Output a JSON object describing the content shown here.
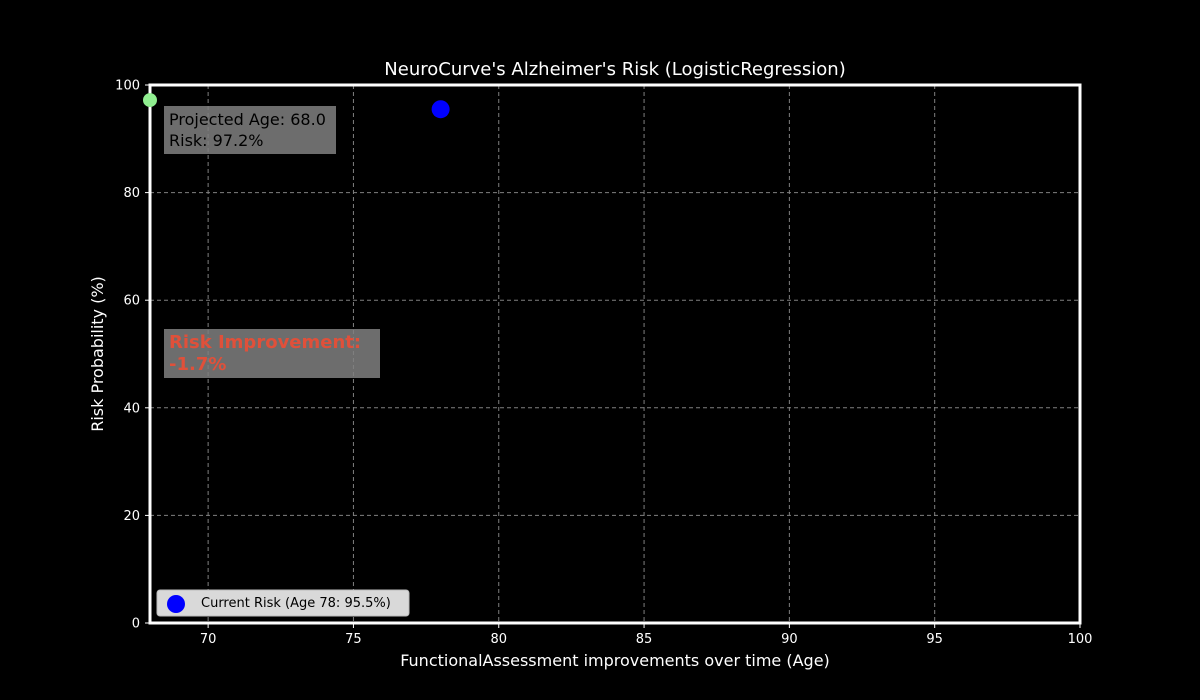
{
  "chart_data": {
    "type": "scatter",
    "title": "NeuroCurve's Alzheimer's Risk (LogisticRegression)",
    "xlabel": "FunctionalAssessment improvements over time (Age)",
    "ylabel": "Risk Probability (%)",
    "xlim": [
      68,
      100
    ],
    "ylim": [
      0,
      100
    ],
    "xticks": [
      70,
      75,
      80,
      85,
      90,
      95,
      100
    ],
    "yticks": [
      0,
      20,
      40,
      60,
      80,
      100
    ],
    "grid": true,
    "legend_position": "lower-left",
    "series": [
      {
        "name": "Current Risk (Age 78: 95.5%)",
        "color": "#0000ff",
        "points": [
          {
            "x": 78,
            "y": 95.5
          }
        ]
      },
      {
        "color": "#90ee90",
        "points": [
          {
            "x": 68,
            "y": 97.2
          }
        ]
      }
    ],
    "annotations": [
      {
        "id": "projected",
        "lines": [
          "Projected Age: 68.0",
          "Risk: 97.2%"
        ],
        "color": "#000000"
      },
      {
        "id": "improvement",
        "lines": [
          "Risk Improvement:",
          "-1.7%"
        ],
        "color": "#e0503a"
      }
    ]
  }
}
